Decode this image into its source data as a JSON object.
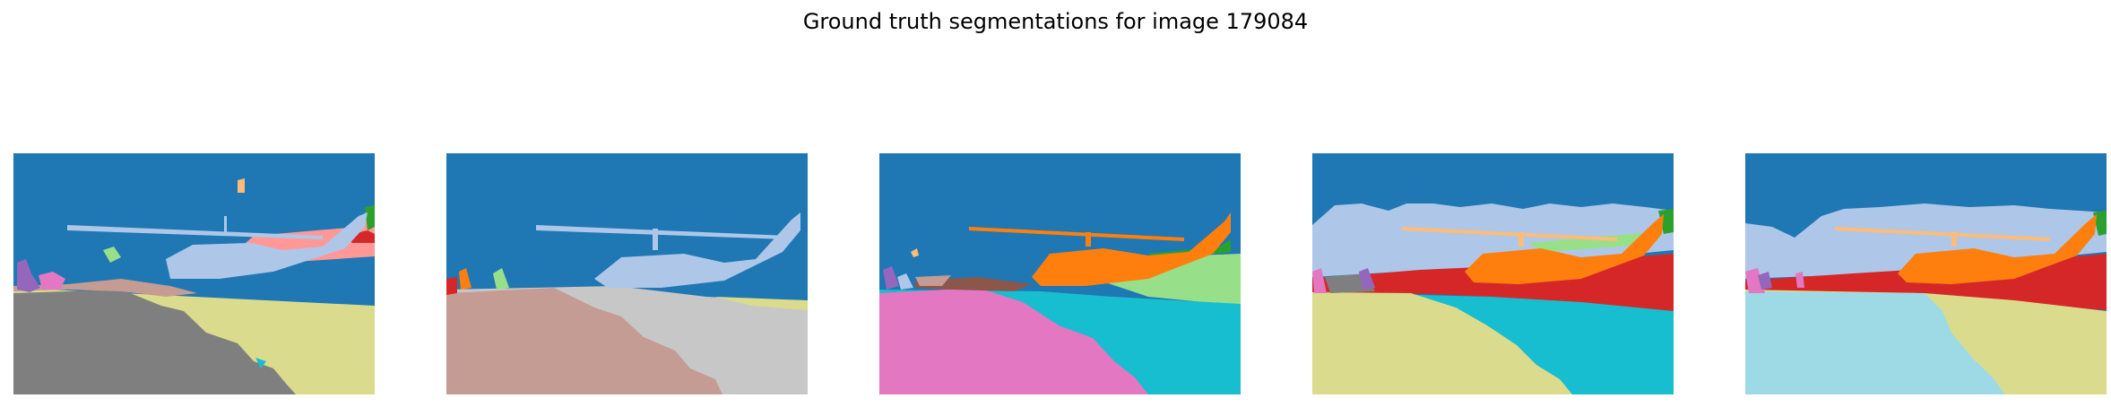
{
  "figure": {
    "title": "Ground truth segmentations for image 179084"
  },
  "panels": [
    {
      "name": "segmentation-1",
      "colors": [
        "#1f77b4",
        "#aec7e8",
        "#7f7f7f",
        "#dbdb8d",
        "#ff9896",
        "#c49c94",
        "#d62728",
        "#2ca02c",
        "#9467bd",
        "#e377c2",
        "#ffbb78",
        "#98df8a",
        "#17becf"
      ]
    },
    {
      "name": "segmentation-2",
      "colors": [
        "#1f77b4",
        "#aec7e8",
        "#c49c94",
        "#c7c7c7",
        "#dbdb8d",
        "#d62728",
        "#ff7f0e",
        "#98df8a"
      ]
    },
    {
      "name": "segmentation-3",
      "colors": [
        "#1f77b4",
        "#ff7f0e",
        "#e377c2",
        "#17becf",
        "#98df8a",
        "#8c564b",
        "#2ca02c",
        "#9467bd",
        "#ffbb78",
        "#c49c94",
        "#aec7e8"
      ]
    },
    {
      "name": "segmentation-4",
      "colors": [
        "#1f77b4",
        "#aec7e8",
        "#ff7f0e",
        "#ffbb78",
        "#d62728",
        "#dbdb8d",
        "#17becf",
        "#2ca02c",
        "#98df8a",
        "#7f7f7f",
        "#e377c2",
        "#9467bd"
      ]
    },
    {
      "name": "segmentation-5",
      "colors": [
        "#1f77b4",
        "#aec7e8",
        "#ff7f0e",
        "#ffbb78",
        "#d62728",
        "#9edae5",
        "#dbdb8d",
        "#2ca02c",
        "#9467bd",
        "#e377c2"
      ]
    }
  ]
}
